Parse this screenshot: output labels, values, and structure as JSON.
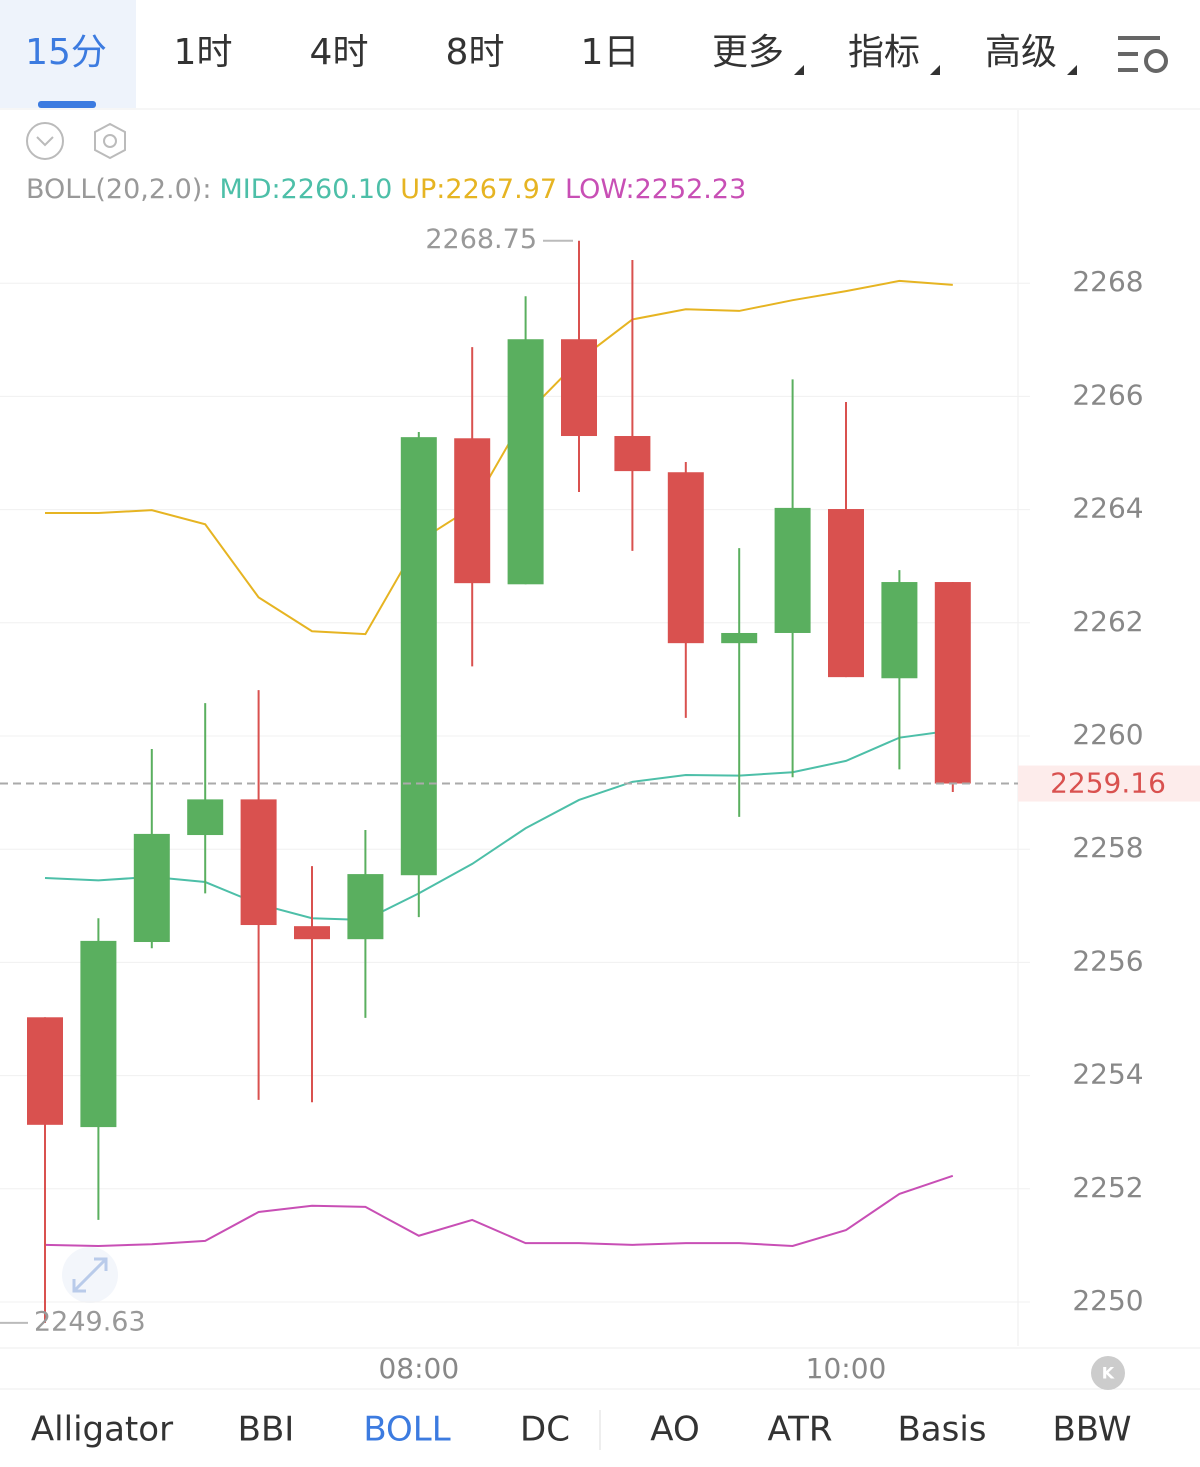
{
  "toolbar": {
    "timeframes": [
      "15分",
      "1时",
      "4时",
      "8时",
      "1日"
    ],
    "active": 0,
    "menus": [
      "更多",
      "指标",
      "高级"
    ]
  },
  "indicator_tabs": {
    "items": [
      "Alligator",
      "BBI",
      "BOLL",
      "DC",
      "AO",
      "ATR",
      "Basis",
      "BBW"
    ],
    "active": 2
  },
  "chart_data": {
    "type": "candlestick",
    "indicator_title": "BOLL(20,2.0):",
    "categories": [
      null,
      null,
      null,
      null,
      null,
      null,
      null,
      "08:00",
      null,
      null,
      null,
      null,
      null,
      null,
      null,
      "10:00",
      null,
      null
    ],
    "open": [
      2255.03,
      2253.09,
      2256.36,
      2258.25,
      2258.88,
      2256.64,
      2256.41,
      2257.54,
      2265.26,
      2262.68,
      2267.01,
      2265.3,
      2264.66,
      2261.64,
      2261.82,
      2264.01,
      2261.02,
      2262.72
    ],
    "high": [
      2255.03,
      2256.78,
      2259.77,
      2260.58,
      2260.81,
      2257.7,
      2258.34,
      2265.37,
      2266.87,
      2267.77,
      2268.75,
      2268.41,
      2264.84,
      2263.32,
      2266.3,
      2265.9,
      2262.93,
      2262.72
    ],
    "low": [
      2249.63,
      2251.45,
      2256.25,
      2257.22,
      2253.57,
      2253.53,
      2255.02,
      2256.8,
      2261.23,
      2262.68,
      2264.31,
      2263.27,
      2260.32,
      2258.57,
      2259.27,
      2261.04,
      2259.41,
      2259.01
    ],
    "close": [
      2253.13,
      2256.38,
      2258.27,
      2258.88,
      2256.66,
      2256.41,
      2257.56,
      2265.28,
      2262.7,
      2267.01,
      2265.3,
      2264.68,
      2261.64,
      2261.82,
      2264.03,
      2261.04,
      2262.72,
      2259.16
    ],
    "up_color": "#5aaf5f",
    "down_color": "#d9514f",
    "series": [
      {
        "name": "MID:",
        "color": "#4dbfa8",
        "last_label": "2260.10",
        "values": [
          2257.49,
          2257.45,
          2257.51,
          2257.42,
          2257.03,
          2256.78,
          2256.75,
          2257.22,
          2257.74,
          2258.37,
          2258.87,
          2259.19,
          2259.31,
          2259.3,
          2259.36,
          2259.56,
          2259.97,
          2260.1
        ]
      },
      {
        "name": "UP:",
        "color": "#e6b422",
        "last_label": "2267.97",
        "values": [
          2263.94,
          2263.94,
          2263.99,
          2263.74,
          2262.45,
          2261.85,
          2261.8,
          2263.44,
          2264.04,
          2265.68,
          2266.64,
          2267.36,
          2267.54,
          2267.51,
          2267.7,
          2267.86,
          2268.04,
          2267.97
        ]
      },
      {
        "name": "LOW:",
        "color": "#c84fb5",
        "last_label": "2252.23",
        "values": [
          2251.01,
          2250.99,
          2251.02,
          2251.08,
          2251.59,
          2251.7,
          2251.68,
          2251.17,
          2251.45,
          2251.04,
          2251.04,
          2251.01,
          2251.04,
          2251.04,
          2250.99,
          2251.27,
          2251.91,
          2252.23
        ]
      }
    ],
    "max_label": 2268.75,
    "min_label": 2249.63,
    "last_price": 2259.16,
    "ylim": [
      2249.24,
      2271.06
    ],
    "yticks": [
      2250,
      2252,
      2254,
      2256,
      2258,
      2260,
      2262,
      2264,
      2266,
      2268
    ],
    "grid": true
  }
}
